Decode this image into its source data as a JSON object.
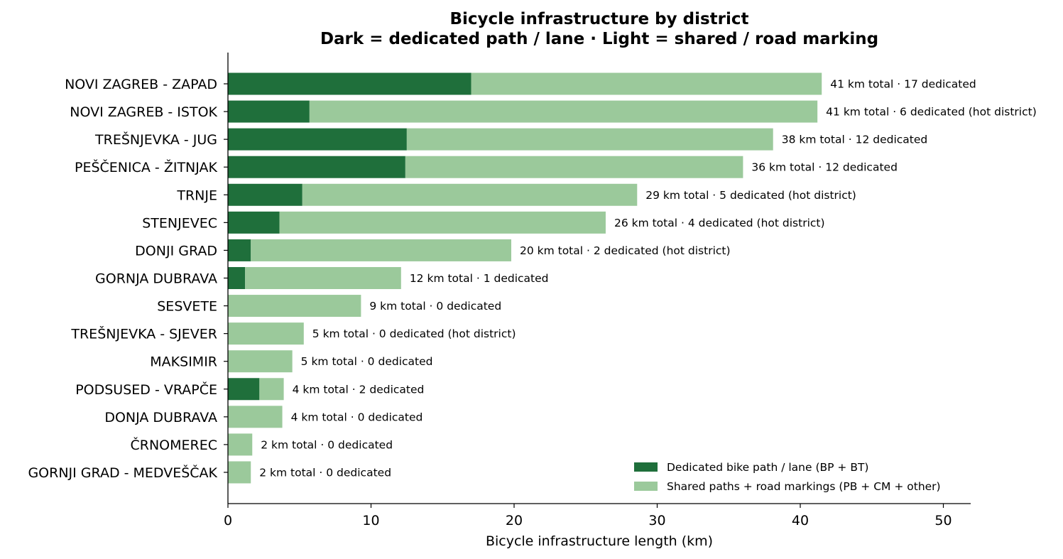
{
  "chart_data": {
    "type": "bar",
    "orientation": "horizontal",
    "stacked": true,
    "title": "Bicycle infrastructure by district",
    "subtitle": "Dark = dedicated path / lane · Light = shared / road marking",
    "xlabel": "Bicycle infrastructure length (km)",
    "ylabel": "",
    "xlim": [
      0,
      52
    ],
    "xticks": [
      0,
      10,
      20,
      30,
      40,
      50
    ],
    "grid": false,
    "legend_position": "lower-right",
    "categories": [
      "NOVI ZAGREB - ZAPAD",
      "NOVI ZAGREB - ISTOK",
      "TREŠNJEVKA - JUG",
      "PEŠČENICA - ŽITNJAK",
      "TRNJE",
      "STENJEVEC",
      "DONJI GRAD",
      "GORNJA DUBRAVA",
      "SESVETE",
      "TREŠNJEVKA - SJEVER",
      "MAKSIMIR",
      "PODSUSED - VRAPČE",
      "DONJA DUBRAVA",
      "ČRNOMEREC",
      "GORNJI GRAD - MEDVEŠČAK"
    ],
    "series": [
      {
        "name": "Dedicated bike path / lane (BP + BT)",
        "color": "#1f6f3b",
        "values": [
          17.0,
          5.7,
          12.5,
          12.4,
          5.2,
          3.6,
          1.6,
          1.2,
          0,
          0,
          0,
          2.2,
          0,
          0,
          0
        ]
      },
      {
        "name": "Shared paths + road markings (PB + CM + other)",
        "color": "#9bc99b",
        "values": [
          24.5,
          35.5,
          25.6,
          23.6,
          23.4,
          22.8,
          18.2,
          10.9,
          9.3,
          5.3,
          4.5,
          1.7,
          3.8,
          1.7,
          1.6
        ]
      }
    ],
    "annotations": [
      "41 km total · 17 dedicated",
      "41 km total · 6 dedicated (hot district)",
      "38 km total · 12 dedicated",
      "36 km total · 12 dedicated",
      "29 km total · 5 dedicated (hot district)",
      "26 km total · 4 dedicated (hot district)",
      "20 km total · 2 dedicated (hot district)",
      "12 km total · 1 dedicated",
      "9 km total · 0 dedicated",
      "5 km total · 0 dedicated (hot district)",
      "5 km total · 0 dedicated",
      "4 km total · 2 dedicated",
      "4 km total · 0 dedicated",
      "2 km total · 0 dedicated",
      "2 km total · 0 dedicated"
    ]
  }
}
